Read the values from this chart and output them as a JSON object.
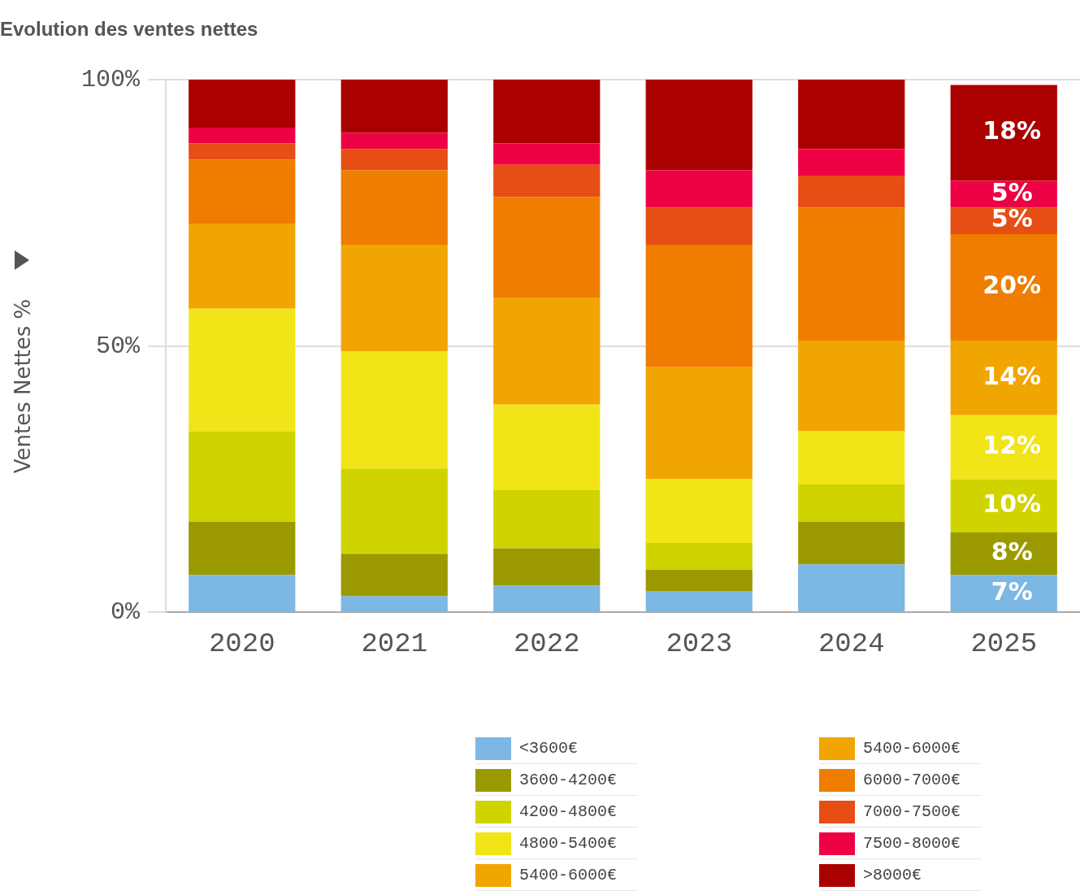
{
  "chart_data": {
    "type": "bar",
    "title": "Evolution des ventes nettes",
    "ylabel": "Ventes Nettes %",
    "categories": [
      "2020",
      "2021",
      "2022",
      "2023",
      "2024",
      "2025"
    ],
    "stacked": true,
    "ylim": [
      0,
      100
    ],
    "yticks": [
      {
        "value": 0,
        "label": "0%"
      },
      {
        "value": 50,
        "label": "50%"
      },
      {
        "value": 100,
        "label": "100%"
      }
    ],
    "grid": "y",
    "legend": "bottom",
    "series": [
      {
        "name": "<3600€",
        "color": "#7db7e3",
        "values": [
          7,
          3,
          5,
          4,
          9,
          7
        ],
        "value_labels": [
          null,
          null,
          null,
          null,
          null,
          "7%"
        ]
      },
      {
        "name": "3600-4200€",
        "color": "#9a9a00",
        "values": [
          10,
          8,
          7,
          4,
          8,
          8
        ],
        "value_labels": [
          null,
          null,
          null,
          null,
          null,
          "8%"
        ]
      },
      {
        "name": "4200-4800€",
        "color": "#cfd400",
        "values": [
          17,
          16,
          11,
          5,
          7,
          10
        ],
        "value_labels": [
          null,
          null,
          null,
          null,
          null,
          "10%"
        ]
      },
      {
        "name": "4800-5400€",
        "color": "#f1e518",
        "values": [
          23,
          22,
          16,
          12,
          10,
          12
        ],
        "value_labels": [
          null,
          null,
          null,
          null,
          null,
          "12%"
        ]
      },
      {
        "name": "5400-6000€",
        "color": "#f1a500",
        "values": [
          16,
          20,
          20,
          21,
          17,
          14
        ],
        "value_labels": [
          null,
          null,
          null,
          null,
          null,
          "14%"
        ]
      },
      {
        "name": "6000-7000€",
        "color": "#ee7d00",
        "values": [
          12,
          14,
          19,
          23,
          25,
          20
        ],
        "value_labels": [
          null,
          null,
          null,
          null,
          null,
          "20%"
        ]
      },
      {
        "name": "7000-7500€",
        "color": "#e64e14",
        "values": [
          3,
          4,
          6,
          7,
          6,
          5
        ],
        "value_labels": [
          null,
          null,
          null,
          null,
          null,
          "5%"
        ]
      },
      {
        "name": "7500-8000€",
        "color": "#ee0044",
        "values": [
          3,
          3,
          4,
          7,
          5,
          5
        ],
        "value_labels": [
          null,
          null,
          null,
          null,
          null,
          "5%"
        ]
      },
      {
        "name": ">8000€",
        "color": "#aa0000",
        "values": [
          9,
          10,
          12,
          17,
          13,
          18
        ],
        "value_labels": [
          null,
          null,
          null,
          null,
          null,
          "18%"
        ]
      }
    ]
  }
}
